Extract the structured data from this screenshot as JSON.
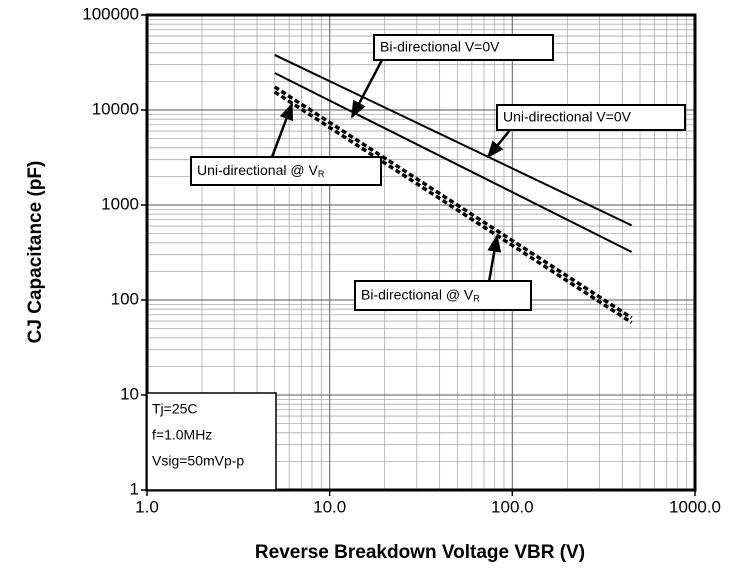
{
  "chart_data": {
    "type": "line",
    "x_label": "Reverse Breakdown Voltage VBR (V)",
    "y_label": "CJ Capacitance (pF)",
    "log_x": true,
    "log_y": true,
    "grid": true,
    "xlim": [
      1,
      1000
    ],
    "xticks": [
      {
        "value": 1,
        "label": "1.0"
      },
      {
        "value": 10,
        "label": "10.0"
      },
      {
        "value": 100,
        "label": "100.0"
      },
      {
        "value": 1000,
        "label": "1000.0"
      }
    ],
    "ylim": [
      1,
      100000
    ],
    "yticks": [
      1,
      10,
      100,
      1000,
      10000,
      100000
    ],
    "x": [
      5,
      450
    ],
    "series": [
      {
        "color": "#000000",
        "dash": false,
        "values": [
          38000,
          610
        ]
      },
      {
        "color": "#000000",
        "dash": false,
        "values": [
          24500,
          320
        ]
      },
      {
        "color": "#000000",
        "dash": true,
        "values": [
          17500,
          65
        ]
      },
      {
        "color": "#000000",
        "dash": true,
        "values": [
          15500,
          58
        ]
      }
    ],
    "annotations": [
      {
        "text": "Bi-directional V=0V",
        "sub": null
      },
      {
        "text": "Uni-directional V=0V",
        "sub": null
      },
      {
        "text": "Uni-directional @ V",
        "sub": "R"
      },
      {
        "text": "Bi-directional @ V",
        "sub": "R"
      }
    ],
    "info": [
      "Tj=25C",
      "f=1.0MHz",
      "Vsig=50mVp-p"
    ]
  }
}
